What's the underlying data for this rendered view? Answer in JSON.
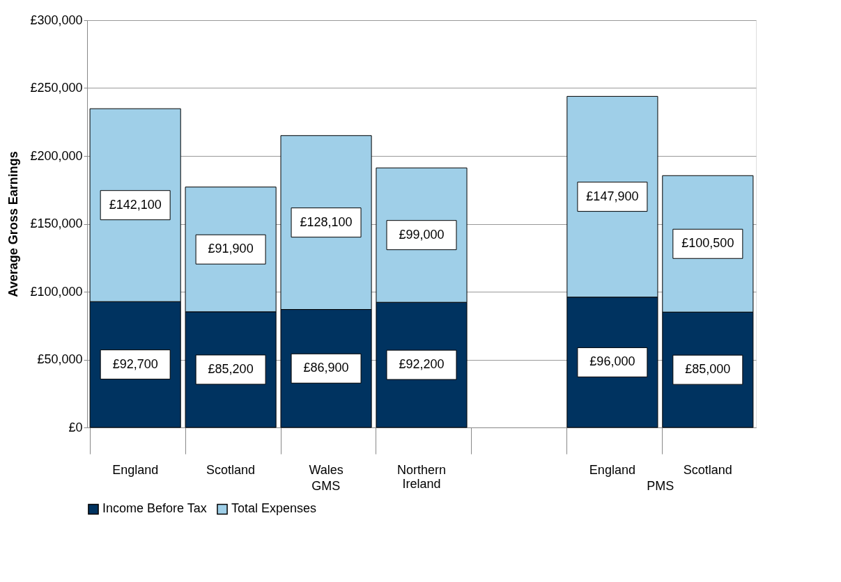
{
  "chart_data": {
    "type": "bar",
    "stacked": true,
    "ylabel": "Average Gross Earnings",
    "categories": [
      "England",
      "Scotland",
      "Wales",
      "Northern Ireland",
      null,
      "England",
      "Scotland"
    ],
    "series": [
      {
        "name": "Income Before Tax",
        "color": "#003360",
        "values": [
          92700,
          85200,
          86900,
          92200,
          null,
          96000,
          85000
        ],
        "value_labels": [
          "£92,700",
          "£85,200",
          "£86,900",
          "£92,200",
          null,
          "£96,000",
          "£85,000"
        ]
      },
      {
        "name": "Total Expenses",
        "color": "#9fcfe8",
        "values": [
          142100,
          91900,
          128100,
          99000,
          null,
          147900,
          100500
        ],
        "value_labels": [
          "£142,100",
          "£91,900",
          "£128,100",
          "£99,000",
          null,
          "£147,900",
          "£100,500"
        ]
      }
    ],
    "ylim": [
      0,
      300000
    ],
    "yticks": [
      {
        "value": 0,
        "label": "£0"
      },
      {
        "value": 50000,
        "label": "£50,000"
      },
      {
        "value": 100000,
        "label": "£100,000"
      },
      {
        "value": 150000,
        "label": "£150,000"
      },
      {
        "value": 200000,
        "label": "£200,000"
      },
      {
        "value": 250000,
        "label": "£250,000"
      },
      {
        "value": 300000,
        "label": "£300,000"
      }
    ],
    "annotations": [
      "GMS",
      "PMS"
    ],
    "grid": "y",
    "legend": "bottom"
  }
}
